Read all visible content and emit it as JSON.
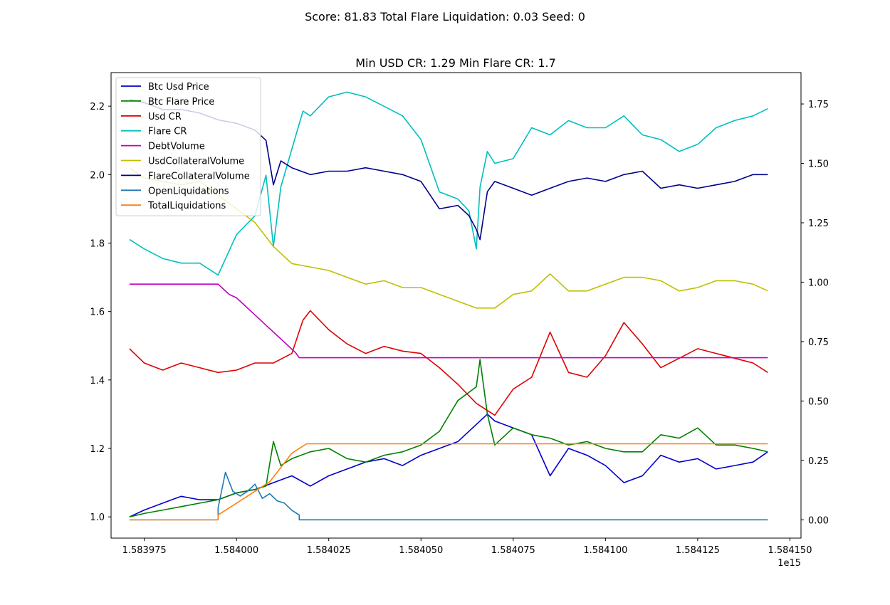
{
  "suptitle": "Score: 81.83 Total Flare Liquidation: 0.03 Seed: 0",
  "chart_data": {
    "type": "line",
    "title": "Min USD CR: 1.29 Min Flare CR: 1.7",
    "xlabel": "",
    "ylabel": "",
    "x_offset_label": "1e15",
    "xlim": [
      1.583966,
      1.584153
    ],
    "x_ticks": [
      1.583975,
      1.584,
      1.584025,
      1.58405,
      1.584075,
      1.5841,
      1.584125,
      1.58415
    ],
    "x_tick_labels": [
      "1.583975",
      "1.584000",
      "1.584025",
      "1.584050",
      "1.584075",
      "1.584100",
      "1.584125",
      "1.584150"
    ],
    "ylim_left": [
      0.938,
      2.298
    ],
    "y_ticks_left": [
      1.0,
      1.2,
      1.4,
      1.6,
      1.8,
      2.0,
      2.2
    ],
    "y_tick_labels_left": [
      "1.0",
      "1.2",
      "1.4",
      "1.6",
      "1.8",
      "2.0",
      "2.2"
    ],
    "ylim_right": [
      -0.077,
      1.882
    ],
    "y_ticks_right": [
      0.0,
      0.25,
      0.5,
      0.75,
      1.0,
      1.25,
      1.5,
      1.75
    ],
    "y_tick_labels_right": [
      "0.00",
      "0.25",
      "0.50",
      "0.75",
      "1.00",
      "1.25",
      "1.50",
      "1.75"
    ],
    "grid": false,
    "legend_position": "upper-left",
    "series": [
      {
        "name": "Btc Usd Price",
        "color": "#0000cc",
        "axis": "left",
        "x": [
          1.583971,
          1.583975,
          1.58398,
          1.583985,
          1.58399,
          1.583995,
          1.584,
          1.584005,
          1.58401,
          1.584015,
          1.58402,
          1.584025,
          1.58403,
          1.584035,
          1.58404,
          1.584045,
          1.58405,
          1.584055,
          1.58406,
          1.584065,
          1.584068,
          1.58407,
          1.584075,
          1.58408,
          1.584085,
          1.58409,
          1.584095,
          1.5841,
          1.584105,
          1.58411,
          1.584115,
          1.58412,
          1.584125,
          1.58413,
          1.584135,
          1.58414,
          1.584144
        ],
        "y": [
          1.0,
          1.02,
          1.04,
          1.06,
          1.05,
          1.05,
          1.07,
          1.08,
          1.1,
          1.12,
          1.09,
          1.12,
          1.14,
          1.16,
          1.17,
          1.15,
          1.18,
          1.2,
          1.22,
          1.27,
          1.3,
          1.28,
          1.26,
          1.24,
          1.12,
          1.2,
          1.18,
          1.15,
          1.1,
          1.12,
          1.18,
          1.16,
          1.17,
          1.14,
          1.15,
          1.16,
          1.19
        ]
      },
      {
        "name": "Btc Flare Price",
        "color": "#008000",
        "axis": "left",
        "x": [
          1.583971,
          1.583975,
          1.58398,
          1.583985,
          1.58399,
          1.583995,
          1.584,
          1.584005,
          1.584008,
          1.58401,
          1.584012,
          1.584015,
          1.58402,
          1.584025,
          1.58403,
          1.584035,
          1.58404,
          1.584045,
          1.58405,
          1.584055,
          1.58406,
          1.584065,
          1.584066,
          1.584068,
          1.58407,
          1.584075,
          1.58408,
          1.584085,
          1.58409,
          1.584095,
          1.5841,
          1.584105,
          1.58411,
          1.584115,
          1.58412,
          1.584125,
          1.58413,
          1.584135,
          1.58414,
          1.584144
        ],
        "y": [
          1.0,
          1.01,
          1.02,
          1.03,
          1.04,
          1.05,
          1.07,
          1.08,
          1.09,
          1.22,
          1.15,
          1.17,
          1.19,
          1.2,
          1.17,
          1.16,
          1.18,
          1.19,
          1.21,
          1.25,
          1.34,
          1.38,
          1.46,
          1.3,
          1.21,
          1.26,
          1.24,
          1.23,
          1.21,
          1.22,
          1.2,
          1.19,
          1.19,
          1.24,
          1.23,
          1.26,
          1.21,
          1.21,
          1.2,
          1.19
        ]
      },
      {
        "name": "Usd CR",
        "color": "#e00000",
        "axis": "right",
        "x": [
          1.583971,
          1.583975,
          1.58398,
          1.583985,
          1.58399,
          1.583995,
          1.584,
          1.584005,
          1.58401,
          1.584015,
          1.584018,
          1.58402,
          1.584025,
          1.58403,
          1.584035,
          1.58404,
          1.584045,
          1.58405,
          1.584055,
          1.58406,
          1.584065,
          1.58407,
          1.584075,
          1.58408,
          1.584085,
          1.58409,
          1.584095,
          1.5841,
          1.584105,
          1.58411,
          1.584115,
          1.58412,
          1.584125,
          1.58413,
          1.584135,
          1.58414,
          1.584144
        ],
        "y": [
          0.72,
          0.66,
          0.63,
          0.66,
          0.64,
          0.62,
          0.63,
          0.66,
          0.66,
          0.7,
          0.84,
          0.88,
          0.8,
          0.74,
          0.7,
          0.73,
          0.71,
          0.7,
          0.64,
          0.57,
          0.49,
          0.44,
          0.55,
          0.6,
          0.79,
          0.62,
          0.6,
          0.69,
          0.83,
          0.74,
          0.64,
          0.68,
          0.72,
          0.7,
          0.68,
          0.66,
          0.62
        ]
      },
      {
        "name": "Flare CR",
        "color": "#00bfbf",
        "axis": "right",
        "x": [
          1.583971,
          1.583975,
          1.58398,
          1.583985,
          1.58399,
          1.583995,
          1.584,
          1.584005,
          1.584008,
          1.58401,
          1.584012,
          1.584015,
          1.584018,
          1.58402,
          1.584025,
          1.58403,
          1.584035,
          1.58404,
          1.584045,
          1.58405,
          1.584055,
          1.58406,
          1.584063,
          1.584065,
          1.584066,
          1.584068,
          1.58407,
          1.584075,
          1.58408,
          1.584085,
          1.58409,
          1.584095,
          1.5841,
          1.584105,
          1.58411,
          1.584115,
          1.58412,
          1.584125,
          1.58413,
          1.584135,
          1.58414,
          1.584144
        ],
        "y": [
          1.18,
          1.14,
          1.1,
          1.08,
          1.08,
          1.03,
          1.2,
          1.28,
          1.45,
          1.15,
          1.4,
          1.56,
          1.72,
          1.7,
          1.78,
          1.8,
          1.78,
          1.74,
          1.7,
          1.6,
          1.38,
          1.35,
          1.3,
          1.14,
          1.4,
          1.55,
          1.5,
          1.52,
          1.65,
          1.62,
          1.68,
          1.65,
          1.65,
          1.7,
          1.62,
          1.6,
          1.55,
          1.58,
          1.65,
          1.68,
          1.7,
          1.73
        ]
      },
      {
        "name": "DebtVolume",
        "color": "#bf00bf",
        "axis": "left",
        "x": [
          1.583971,
          1.583995,
          1.583996,
          1.583998,
          1.584,
          1.584002,
          1.584004,
          1.584006,
          1.584008,
          1.58401,
          1.584012,
          1.584014,
          1.584016,
          1.584017,
          1.584144
        ],
        "y": [
          1.68,
          1.68,
          1.67,
          1.65,
          1.64,
          1.62,
          1.6,
          1.58,
          1.56,
          1.54,
          1.52,
          1.5,
          1.48,
          1.465,
          1.465
        ]
      },
      {
        "name": "UsdCollateralVolume",
        "color": "#bfbf00",
        "axis": "left",
        "x": [
          1.583971,
          1.583975,
          1.58398,
          1.583985,
          1.58399,
          1.583995,
          1.584,
          1.584005,
          1.58401,
          1.584015,
          1.58402,
          1.584025,
          1.58403,
          1.584035,
          1.58404,
          1.584045,
          1.58405,
          1.584055,
          1.58406,
          1.584065,
          1.58407,
          1.584075,
          1.58408,
          1.584085,
          1.58409,
          1.584095,
          1.5841,
          1.584105,
          1.58411,
          1.584115,
          1.58412,
          1.584125,
          1.58413,
          1.584135,
          1.58414,
          1.584144
        ],
        "y": [
          2.02,
          1.99,
          1.98,
          1.97,
          1.98,
          1.94,
          1.9,
          1.86,
          1.79,
          1.74,
          1.73,
          1.72,
          1.7,
          1.68,
          1.69,
          1.67,
          1.67,
          1.65,
          1.63,
          1.61,
          1.61,
          1.65,
          1.66,
          1.71,
          1.66,
          1.66,
          1.68,
          1.7,
          1.7,
          1.69,
          1.66,
          1.67,
          1.69,
          1.69,
          1.68,
          1.66
        ]
      },
      {
        "name": "FlareCollateralVolume",
        "color": "#00008b",
        "axis": "left",
        "x": [
          1.583971,
          1.583975,
          1.58398,
          1.583985,
          1.58399,
          1.583995,
          1.584,
          1.584005,
          1.584008,
          1.58401,
          1.584012,
          1.584015,
          1.58402,
          1.584025,
          1.58403,
          1.584035,
          1.58404,
          1.584045,
          1.58405,
          1.584055,
          1.58406,
          1.584063,
          1.584065,
          1.584066,
          1.584068,
          1.58407,
          1.584075,
          1.58408,
          1.584085,
          1.58409,
          1.584095,
          1.5841,
          1.584105,
          1.58411,
          1.584115,
          1.58412,
          1.584125,
          1.58413,
          1.584135,
          1.58414,
          1.584144
        ],
        "y": [
          2.22,
          2.21,
          2.19,
          2.19,
          2.18,
          2.16,
          2.15,
          2.13,
          2.1,
          1.97,
          2.04,
          2.02,
          2.0,
          2.01,
          2.01,
          2.02,
          2.01,
          2.0,
          1.98,
          1.9,
          1.91,
          1.88,
          1.84,
          1.81,
          1.95,
          1.98,
          1.96,
          1.94,
          1.96,
          1.98,
          1.99,
          1.98,
          2.0,
          2.01,
          1.96,
          1.97,
          1.96,
          1.97,
          1.98,
          2.0,
          2.0
        ]
      },
      {
        "name": "OpenLiquidations",
        "color": "#1f77b4",
        "axis": "right",
        "x": [
          1.583971,
          1.583995,
          1.583995,
          1.583997,
          1.583999,
          1.584001,
          1.584003,
          1.584005,
          1.584007,
          1.584009,
          1.584011,
          1.584013,
          1.584015,
          1.584017,
          1.584017,
          1.584144
        ],
        "y": [
          0.0,
          0.0,
          0.05,
          0.2,
          0.12,
          0.1,
          0.12,
          0.15,
          0.09,
          0.11,
          0.08,
          0.07,
          0.04,
          0.02,
          0.0,
          0.0
        ]
      },
      {
        "name": "TotalLiquidations",
        "color": "#ff7f0e",
        "axis": "right",
        "x": [
          1.583971,
          1.583995,
          1.583995,
          1.583997,
          1.583999,
          1.584001,
          1.584003,
          1.584005,
          1.584007,
          1.584009,
          1.584011,
          1.584013,
          1.584015,
          1.584017,
          1.584019,
          1.584144
        ],
        "y": [
          0.0,
          0.0,
          0.02,
          0.04,
          0.06,
          0.08,
          0.1,
          0.12,
          0.14,
          0.16,
          0.2,
          0.24,
          0.28,
          0.3,
          0.32,
          0.32
        ]
      }
    ]
  }
}
